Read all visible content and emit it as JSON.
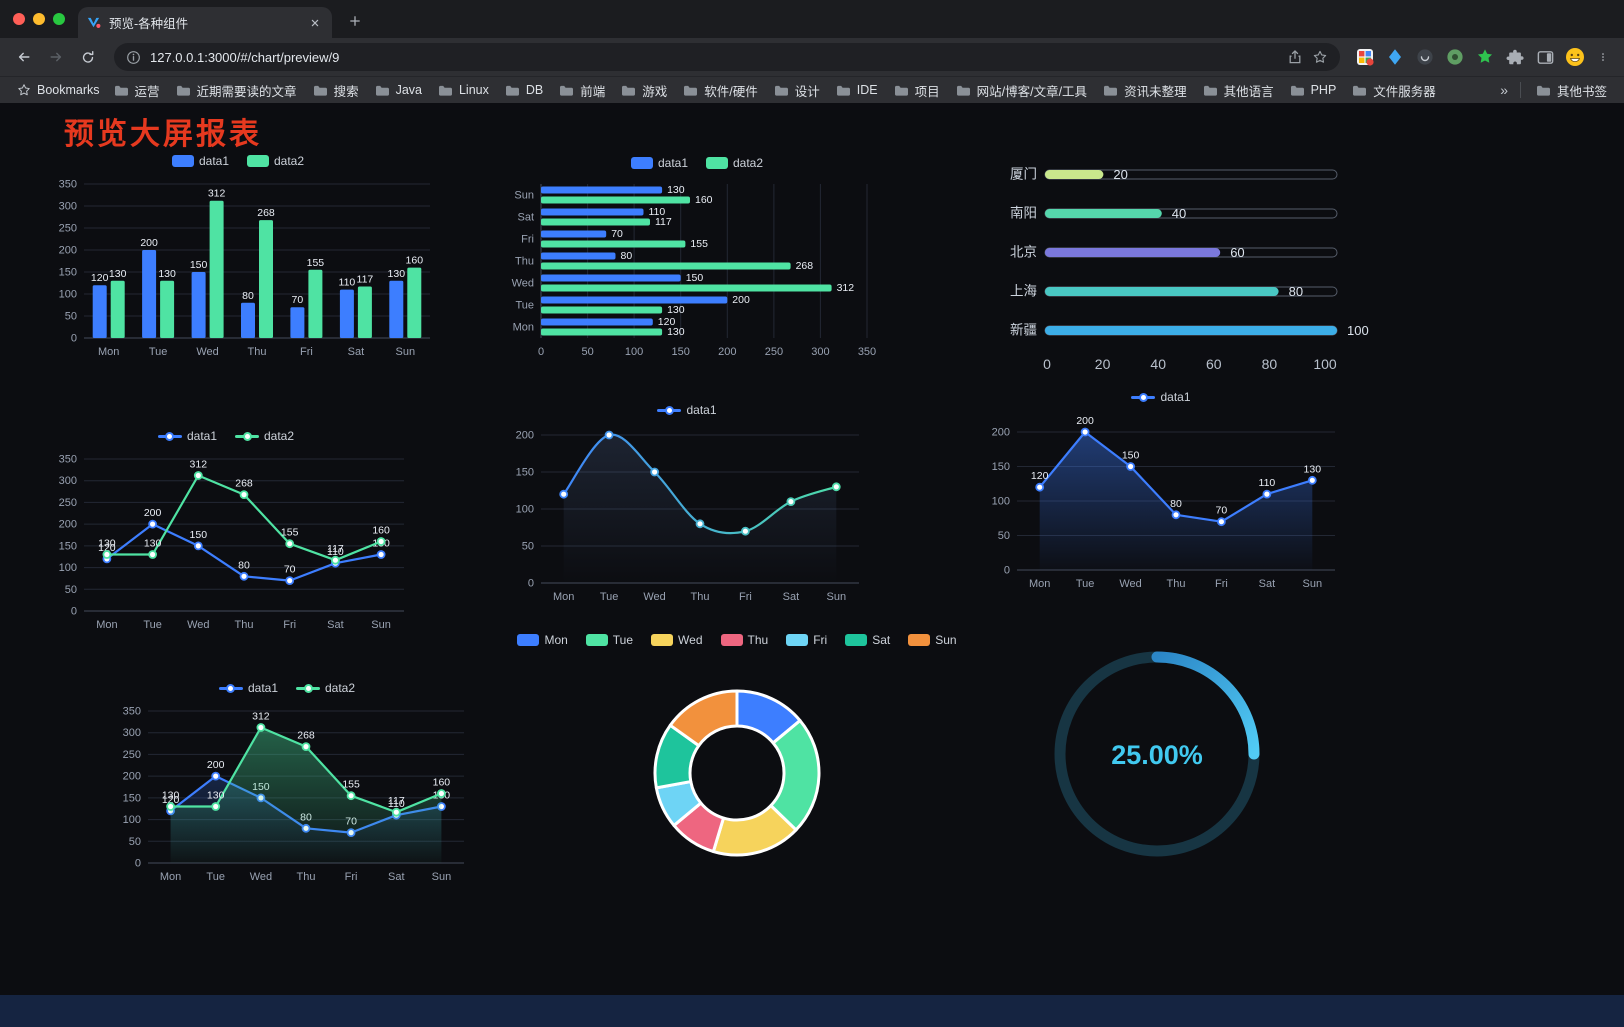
{
  "browser": {
    "tab": {
      "title": "预览-各种组件"
    },
    "url": "127.0.0.1:3000/#/chart/preview/9",
    "bookmarks_bar": {
      "label": "Bookmarks",
      "folders": [
        "运营",
        "近期需要读的文章",
        "搜索",
        "Java",
        "Linux",
        "DB",
        "前端",
        "游戏",
        "软件/硬件",
        "设计",
        "IDE",
        "项目",
        "网站/博客/文章/工具",
        "资讯未整理",
        "其他语言",
        "PHP",
        "文件服务器"
      ],
      "overflow": "»",
      "other": "其他书签"
    },
    "traffic_light_colors": [
      "#FF5F57",
      "#FEBC2E",
      "#28C840"
    ]
  },
  "page": {
    "title": "预览大屏报表",
    "title_color": "#E6391F"
  },
  "icons": {
    "back": "arrow-left",
    "forward": "arrow-right",
    "reload": "refresh",
    "page-info": "info-circle",
    "share": "box-arrow-up",
    "bookmark": "star-outline",
    "extensions": "puzzle-piece",
    "side-panel": "split-square",
    "profile": "smiley-avatar",
    "menu": "kebab-dots",
    "bookmark-folder": "folder",
    "tab-close": "x",
    "new-tab": "plus"
  },
  "chart_data": [
    {
      "id": "bar-grouped",
      "type": "bar",
      "categories": [
        "Mon",
        "Tue",
        "Wed",
        "Thu",
        "Fri",
        "Sat",
        "Sun"
      ],
      "ylim": [
        0,
        350
      ],
      "yticks": [
        0,
        50,
        100,
        150,
        200,
        250,
        300,
        350
      ],
      "legend_position": "top",
      "grid": true,
      "series": [
        {
          "name": "data1",
          "color": "#3D7EFF",
          "values": [
            120,
            200,
            150,
            80,
            70,
            110,
            130
          ]
        },
        {
          "name": "data2",
          "color": "#4FE3A3",
          "values": [
            130,
            130,
            312,
            268,
            155,
            117,
            160
          ]
        }
      ]
    },
    {
      "id": "bar-horizontal",
      "type": "hbar",
      "categories": [
        "Mon",
        "Tue",
        "Wed",
        "Thu",
        "Fri",
        "Sat",
        "Sun"
      ],
      "category_order": "bottom-to-top",
      "xlim": [
        0,
        350
      ],
      "xticks": [
        0,
        50,
        100,
        150,
        200,
        250,
        300,
        350
      ],
      "legend_position": "top",
      "grid": true,
      "series": [
        {
          "name": "data1",
          "color": "#3D7EFF",
          "values": [
            120,
            200,
            150,
            80,
            70,
            110,
            130
          ]
        },
        {
          "name": "data2",
          "color": "#4FE3A3",
          "values": [
            130,
            130,
            312,
            268,
            155,
            117,
            160
          ]
        }
      ]
    },
    {
      "id": "city-progress",
      "type": "progress",
      "max": 100,
      "xticks": [
        0,
        20,
        40,
        60,
        80,
        100
      ],
      "items": [
        {
          "label": "厦门",
          "value": 20,
          "color": "#C9E88C"
        },
        {
          "label": "南阳",
          "value": 40,
          "color": "#55D6AC"
        },
        {
          "label": "北京",
          "value": 60,
          "color": "#7B78DC"
        },
        {
          "label": "上海",
          "value": 80,
          "color": "#49C7C3"
        },
        {
          "label": "新疆",
          "value": 100,
          "color": "#3CAEE8"
        }
      ]
    },
    {
      "id": "line-two-series",
      "type": "line",
      "categories": [
        "Mon",
        "Tue",
        "Wed",
        "Thu",
        "Fri",
        "Sat",
        "Sun"
      ],
      "ylim": [
        0,
        350
      ],
      "yticks": [
        0,
        50,
        100,
        150,
        200,
        250,
        300,
        350
      ],
      "legend_position": "top",
      "series": [
        {
          "name": "data1",
          "color": "#3D7EFF",
          "values": [
            120,
            200,
            150,
            80,
            70,
            110,
            130
          ],
          "labels": true
        },
        {
          "name": "data2",
          "color": "#4FE3A3",
          "values": [
            130,
            130,
            312,
            268,
            155,
            117,
            160
          ],
          "labels": true
        }
      ]
    },
    {
      "id": "line-gradient",
      "type": "line",
      "categories": [
        "Mon",
        "Tue",
        "Wed",
        "Thu",
        "Fri",
        "Sat",
        "Sun"
      ],
      "ylim": [
        0,
        200
      ],
      "yticks": [
        0,
        50,
        100,
        150,
        200
      ],
      "legend_position": "top",
      "series": [
        {
          "name": "data1",
          "gradient": [
            "#3D7EFF",
            "#4FE3A3"
          ],
          "values": [
            120,
            200,
            150,
            80,
            70,
            110,
            130
          ],
          "smooth": true,
          "labels": false,
          "area": {
            "from": "rgba(125,165,235,0.15)",
            "to": "rgba(125,165,235,0)"
          }
        }
      ]
    },
    {
      "id": "line-area",
      "type": "line",
      "categories": [
        "Mon",
        "Tue",
        "Wed",
        "Thu",
        "Fri",
        "Sat",
        "Sun"
      ],
      "ylim": [
        0,
        200
      ],
      "yticks": [
        0,
        50,
        100,
        150,
        200
      ],
      "legend_position": "top",
      "series": [
        {
          "name": "data1",
          "color": "#3D7EFF",
          "values": [
            120,
            200,
            150,
            80,
            70,
            110,
            130
          ],
          "labels": true,
          "area": {
            "from": "rgba(61,126,255,0.42)",
            "to": "rgba(61,126,255,0.02)"
          }
        }
      ]
    },
    {
      "id": "line-two-area",
      "type": "line",
      "categories": [
        "Mon",
        "Tue",
        "Wed",
        "Thu",
        "Fri",
        "Sat",
        "Sun"
      ],
      "ylim": [
        0,
        350
      ],
      "yticks": [
        0,
        50,
        100,
        150,
        200,
        250,
        300,
        350
      ],
      "legend_position": "top",
      "series": [
        {
          "name": "data1",
          "color": "#3D7EFF",
          "values": [
            120,
            200,
            150,
            80,
            70,
            110,
            130
          ],
          "labels": true,
          "area": {
            "from": "rgba(61,126,255,0.22)",
            "to": "rgba(61,126,255,0)"
          }
        },
        {
          "name": "data2",
          "color": "#4FE3A3",
          "values": [
            130,
            130,
            312,
            268,
            155,
            117,
            160
          ],
          "labels": true,
          "area": {
            "from": "rgba(66,200,140,0.45)",
            "to": "rgba(66,200,140,0.03)"
          }
        }
      ]
    },
    {
      "id": "pie-week",
      "type": "pie",
      "donut": true,
      "labels": [
        "Mon",
        "Tue",
        "Wed",
        "Thu",
        "Fri",
        "Sat",
        "Sun"
      ],
      "values": [
        120,
        200,
        150,
        80,
        70,
        110,
        130
      ],
      "colors": [
        "#3D7EFF",
        "#4FE3A3",
        "#F6D35C",
        "#EE6680",
        "#6ED4F5",
        "#1EC49C",
        "#F2913D"
      ],
      "legend_position": "top"
    },
    {
      "id": "gauge-percent",
      "type": "gauge",
      "value": 25,
      "max": 100,
      "text": "25.00%",
      "color": "#41C9F0",
      "track_color": "#173543",
      "arc_gradient": [
        "#2B86C7",
        "#52CCF5"
      ]
    }
  ]
}
